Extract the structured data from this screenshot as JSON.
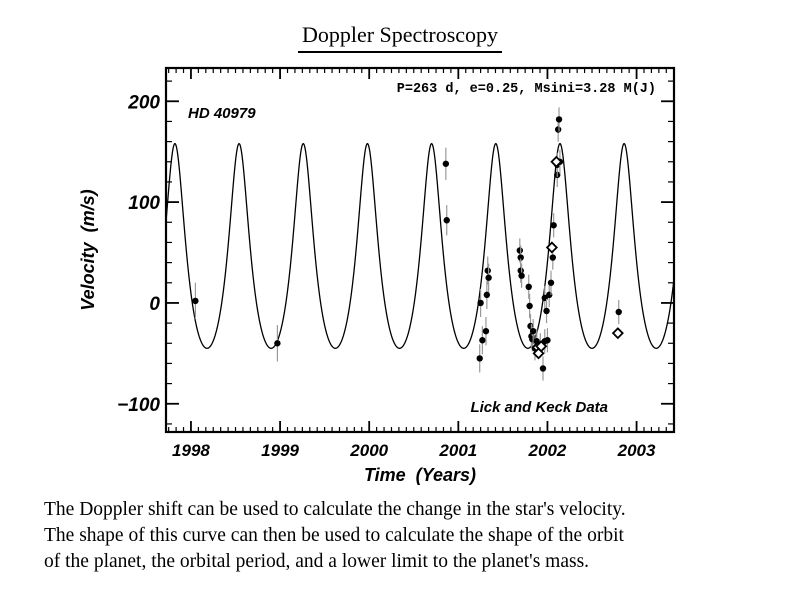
{
  "title": "Doppler Spectroscopy",
  "caption": [
    "The Doppler shift can be used to calculate the change in the star's velocity.",
    "The shape of this curve can then be used to calculate the shape of the orbit",
    "of the planet, the orbital period, and a lower limit to the planet's mass."
  ],
  "chart_data": {
    "type": "scatter",
    "star_label": "HD 40979",
    "params_label": "P=263 d, e=0.25, Msini=3.28 M(J)",
    "data_source_label": "Lick and Keck Data",
    "xlabel": "Time  (Years)",
    "ylabel": "Velocity  (m/s)",
    "xlim": [
      1997.72,
      2003.42
    ],
    "ylim": [
      -128,
      233
    ],
    "x_ticks": [
      1998,
      1999,
      2000,
      2001,
      2002,
      2003
    ],
    "y_ticks": [
      -100,
      0,
      100,
      200
    ],
    "grid": false,
    "colors": {
      "curve": "#000000",
      "points": "#000000",
      "errorbar": "#999999"
    },
    "fit_curve": {
      "period_days": 263,
      "eccentricity": 0.25,
      "min_velocity": -45,
      "max_velocity": 158,
      "max_times": [
        1997.82,
        1998.54,
        1999.26,
        1999.98,
        2000.7,
        2001.42,
        2002.14,
        2002.86
      ]
    },
    "series": [
      {
        "name": "Lick",
        "marker": "filled-circle",
        "points": [
          {
            "x": 1998.05,
            "y": 2,
            "err": 18
          },
          {
            "x": 1998.97,
            "y": -40,
            "err": 18
          },
          {
            "x": 2000.86,
            "y": 138,
            "err": 16
          },
          {
            "x": 2000.87,
            "y": 82,
            "err": 15
          },
          {
            "x": 2001.24,
            "y": -55,
            "err": 14
          },
          {
            "x": 2001.25,
            "y": 0,
            "err": 14
          },
          {
            "x": 2001.27,
            "y": -37,
            "err": 14
          },
          {
            "x": 2001.31,
            "y": -28,
            "err": 14
          },
          {
            "x": 2001.32,
            "y": 8,
            "err": 14
          },
          {
            "x": 2001.33,
            "y": 32,
            "err": 14
          },
          {
            "x": 2001.34,
            "y": 25,
            "err": 14
          },
          {
            "x": 2001.69,
            "y": 52,
            "err": 12
          },
          {
            "x": 2001.7,
            "y": 45,
            "err": 12
          },
          {
            "x": 2001.7,
            "y": 32,
            "err": 12
          },
          {
            "x": 2001.71,
            "y": 27,
            "err": 12
          },
          {
            "x": 2001.79,
            "y": 16,
            "err": 12
          },
          {
            "x": 2001.8,
            "y": -3,
            "err": 12
          },
          {
            "x": 2001.81,
            "y": -23,
            "err": 12
          },
          {
            "x": 2001.82,
            "y": -33,
            "err": 12
          },
          {
            "x": 2001.83,
            "y": -36,
            "err": 12
          },
          {
            "x": 2001.84,
            "y": -28,
            "err": 12
          },
          {
            "x": 2001.86,
            "y": -45,
            "err": 12
          },
          {
            "x": 2001.88,
            "y": -38,
            "err": 12
          },
          {
            "x": 2001.92,
            "y": -42,
            "err": 12
          },
          {
            "x": 2001.95,
            "y": -65,
            "err": 12
          },
          {
            "x": 2001.97,
            "y": -38,
            "err": 12
          },
          {
            "x": 2001.97,
            "y": 5,
            "err": 12
          },
          {
            "x": 2001.99,
            "y": -8,
            "err": 12
          },
          {
            "x": 2002.0,
            "y": -37,
            "err": 12
          },
          {
            "x": 2002.02,
            "y": 8,
            "err": 12
          },
          {
            "x": 2002.04,
            "y": 20,
            "err": 12
          },
          {
            "x": 2002.06,
            "y": 45,
            "err": 12
          },
          {
            "x": 2002.07,
            "y": 77,
            "err": 12
          },
          {
            "x": 2002.11,
            "y": 127,
            "err": 12
          },
          {
            "x": 2002.11,
            "y": 137,
            "err": 12
          },
          {
            "x": 2002.12,
            "y": 172,
            "err": 12
          },
          {
            "x": 2002.13,
            "y": 182,
            "err": 12
          },
          {
            "x": 2002.14,
            "y": 140,
            "err": 12
          },
          {
            "x": 2002.8,
            "y": -9,
            "err": 12
          }
        ]
      },
      {
        "name": "Keck",
        "marker": "open-diamond",
        "points": [
          {
            "x": 2001.89,
            "y": -44
          },
          {
            "x": 2001.9,
            "y": -50
          },
          {
            "x": 2001.93,
            "y": -43
          },
          {
            "x": 2002.05,
            "y": 55
          },
          {
            "x": 2002.1,
            "y": 140
          },
          {
            "x": 2002.79,
            "y": -30
          }
        ]
      }
    ]
  }
}
